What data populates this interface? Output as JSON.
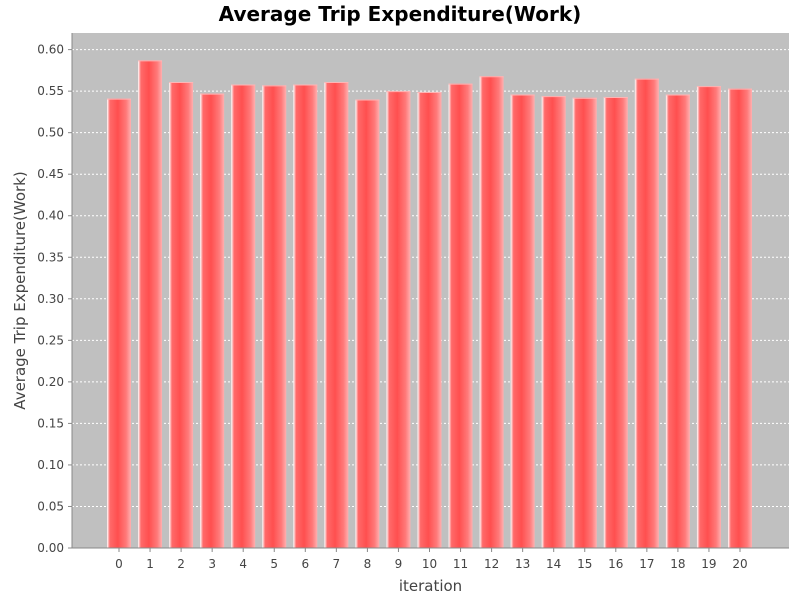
{
  "chart_data": {
    "type": "bar",
    "title": "Average Trip Expenditure(Work)",
    "xlabel": "iteration",
    "ylabel": "Average Trip Expenditure(Work)",
    "categories": [
      "0",
      "1",
      "2",
      "3",
      "4",
      "5",
      "6",
      "7",
      "8",
      "9",
      "10",
      "11",
      "12",
      "13",
      "14",
      "15",
      "16",
      "17",
      "18",
      "19",
      "20"
    ],
    "values": [
      0.541,
      0.587,
      0.561,
      0.547,
      0.558,
      0.557,
      0.558,
      0.561,
      0.54,
      0.55,
      0.549,
      0.559,
      0.568,
      0.546,
      0.544,
      0.542,
      0.543,
      0.565,
      0.546,
      0.556,
      0.553
    ],
    "ylim": [
      0,
      0.62
    ],
    "yticks": [
      "0.00",
      "0.05",
      "0.10",
      "0.15",
      "0.20",
      "0.25",
      "0.30",
      "0.35",
      "0.40",
      "0.45",
      "0.50",
      "0.55",
      "0.60"
    ],
    "grid": true,
    "legend": "none",
    "colors": {
      "plot_background": "#c0c0c0",
      "bar": "#ff5555",
      "bar_highlight": "#ffaaaa",
      "bar_edge": "#ffffff"
    }
  }
}
